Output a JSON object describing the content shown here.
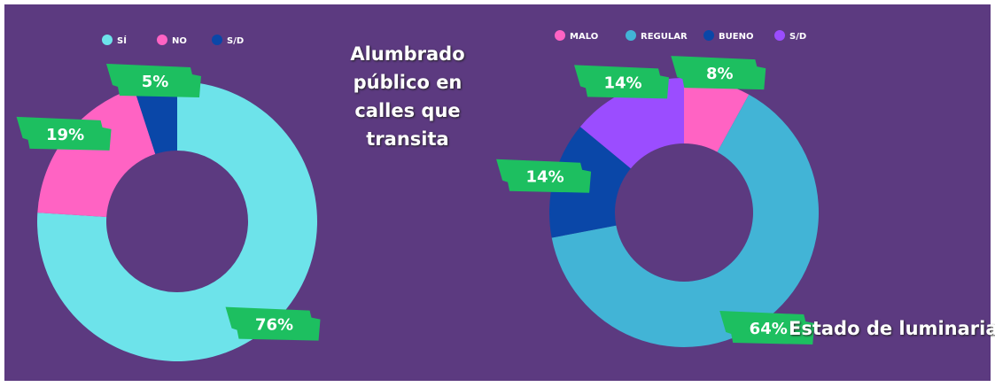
{
  "chart_data": [
    {
      "type": "donut",
      "title": "Alumbrado público en calles que transita",
      "categories": [
        "SÍ",
        "NO",
        "S/D"
      ],
      "values": [
        76,
        19,
        5
      ],
      "value_labels": [
        "76%",
        "19%",
        "5%"
      ],
      "colors": [
        "#6de3ea",
        "#ff63c3",
        "#0a47a8"
      ],
      "legend": "top"
    },
    {
      "type": "donut",
      "title": "Estado de luminaria",
      "categories": [
        "MALO",
        "REGULAR",
        "BUENO",
        "S/D"
      ],
      "values": [
        8,
        64,
        14,
        14
      ],
      "value_labels": [
        "8%",
        "64%",
        "14%",
        "14%"
      ],
      "colors": [
        "#ff63c3",
        "#42b4d6",
        "#0a47a8",
        "#9b4dff"
      ],
      "legend": "top"
    }
  ]
}
